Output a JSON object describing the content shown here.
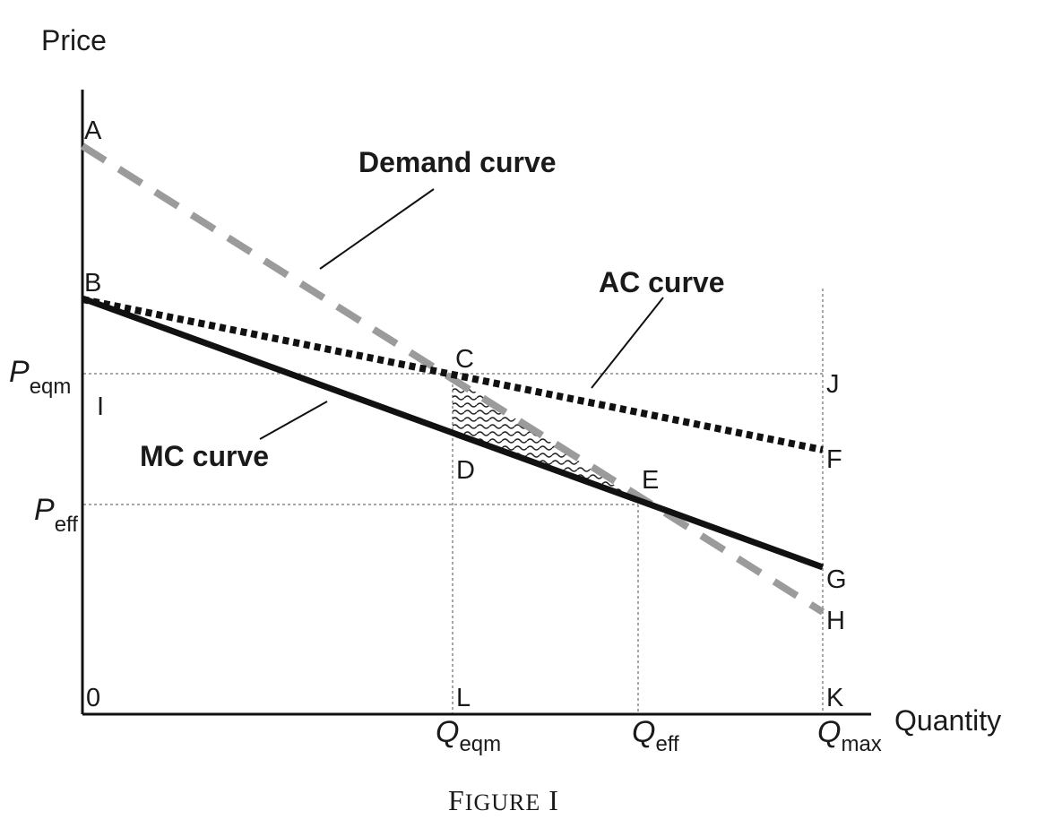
{
  "axes": {
    "y_title": "Price",
    "x_title": "Quantity"
  },
  "ticks": {
    "p_eqm": {
      "main": "P",
      "sub": "eqm"
    },
    "p_eff": {
      "main": "P",
      "sub": "eff"
    },
    "q_eqm": {
      "main": "Q",
      "sub": "eqm"
    },
    "q_eff": {
      "main": "Q",
      "sub": "eff"
    },
    "q_max": {
      "main": "Q",
      "sub": "max"
    }
  },
  "points": {
    "A": "A",
    "B": "B",
    "C": "C",
    "D": "D",
    "E": "E",
    "F": "F",
    "G": "G",
    "H": "H",
    "I": "I",
    "J": "J",
    "K": "K",
    "L": "L",
    "O": "0"
  },
  "curves": {
    "demand": "Demand curve",
    "ac": "AC curve",
    "mc": "MC curve"
  },
  "caption": {
    "first": "F",
    "rest": "IGURE",
    "numeral": "I"
  },
  "colors": {
    "demand": "#9b9b9b",
    "ac": "#111111",
    "mc": "#111111",
    "guides": "#8a8a8a",
    "axis": "#111111"
  }
}
